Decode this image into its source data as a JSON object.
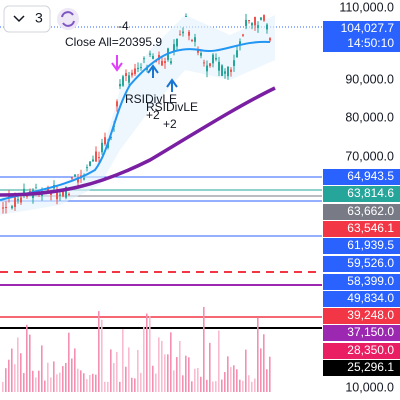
{
  "toolbar": {
    "count": "3"
  },
  "annotations": {
    "exit_qty": "-4",
    "close_all": "Close All=20395.9",
    "signals": [
      {
        "label": "RSIDivLE",
        "qty": "+2"
      },
      {
        "label": "RSIDivLE",
        "qty": "+2"
      }
    ]
  },
  "price_axis": {
    "labels": [
      "110,000.0",
      "90,000.0",
      "80,000.0",
      "70,000.0"
    ],
    "current": {
      "price": "104,027.7",
      "time": "14:50:10"
    },
    "tags": [
      {
        "text": "64,943.5",
        "color": "#2962ff"
      },
      {
        "text": "63,814.6",
        "color": "#26a69a"
      },
      {
        "text": "63,662.0",
        "color": "#787b86"
      },
      {
        "text": "63,546.1",
        "color": "#f23645"
      },
      {
        "text": "61,939.5",
        "color": "#2962ff"
      },
      {
        "text": "59,526.0",
        "color": "#2962ff"
      },
      {
        "text": "58,399.0",
        "color": "#2962ff"
      },
      {
        "text": "49,834.0",
        "color": "#2962ff"
      },
      {
        "text": "39,248.0",
        "color": "#f23645"
      },
      {
        "text": "37,150.0",
        "color": "#9c27b0"
      },
      {
        "text": "28,350.0",
        "color": "#e91e63"
      },
      {
        "text": "25,296.1",
        "color": "#000000"
      }
    ],
    "bottom": "10,000.0"
  }
}
